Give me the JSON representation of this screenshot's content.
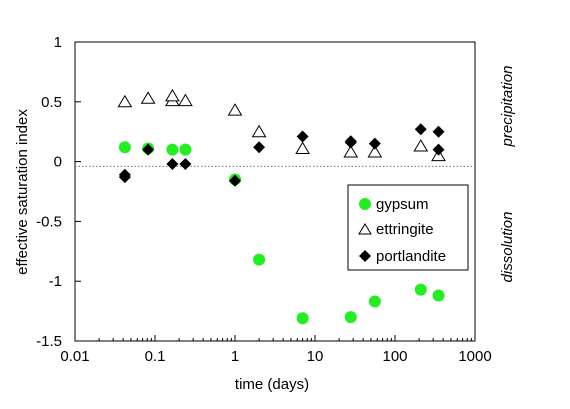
{
  "chart_data": {
    "type": "scatter",
    "title": "",
    "xlabel": "time (days)",
    "ylabel": "effective saturation index",
    "xscale": "log",
    "xlim": [
      0.01,
      1000
    ],
    "ylim": [
      -1.5,
      1
    ],
    "x_ticks": [
      0.01,
      0.1,
      1,
      10,
      100,
      1000
    ],
    "x_tick_labels": [
      "0.01",
      "0.1",
      "1",
      "10",
      "100",
      "1000"
    ],
    "y_ticks": [
      1,
      0.5,
      0,
      -0.5,
      -1,
      -1.5
    ],
    "y_tick_labels": [
      "1",
      "0.5",
      "0",
      "-0.5",
      "-1",
      "-1.5"
    ],
    "reference_line_y": -0.04,
    "side_labels": {
      "upper": "precipitation",
      "lower": "dissolution"
    },
    "legend_position": "right-middle",
    "grid": false,
    "series": [
      {
        "name": "gypsum",
        "marker": "circle",
        "color": "#22ee22",
        "points": [
          [
            0.042,
            0.12
          ],
          [
            0.082,
            0.11
          ],
          [
            0.165,
            0.1
          ],
          [
            0.24,
            0.1
          ],
          [
            1.0,
            -0.15
          ],
          [
            2.0,
            -0.82
          ],
          [
            7.0,
            -1.31
          ],
          [
            28,
            -1.3
          ],
          [
            56,
            -1.17
          ],
          [
            210,
            -1.07
          ],
          [
            350,
            -1.12
          ]
        ]
      },
      {
        "name": "ettringite",
        "marker": "triangle-open",
        "color": "#000000",
        "points": [
          [
            0.042,
            0.5
          ],
          [
            0.082,
            0.53
          ],
          [
            0.165,
            0.51
          ],
          [
            0.165,
            0.55
          ],
          [
            0.24,
            0.51
          ],
          [
            1.0,
            0.43
          ],
          [
            2.0,
            0.25
          ],
          [
            7.0,
            0.11
          ],
          [
            28,
            0.08
          ],
          [
            56,
            0.08
          ],
          [
            210,
            0.13
          ],
          [
            350,
            0.05
          ]
        ]
      },
      {
        "name": "portlandite",
        "marker": "diamond",
        "color": "#000000",
        "points": [
          [
            0.042,
            -0.13
          ],
          [
            0.042,
            -0.11
          ],
          [
            0.082,
            0.1
          ],
          [
            0.165,
            -0.02
          ],
          [
            0.24,
            -0.02
          ],
          [
            1.0,
            -0.16
          ],
          [
            2.0,
            0.12
          ],
          [
            7.0,
            0.21
          ],
          [
            28,
            0.16
          ],
          [
            28,
            0.17
          ],
          [
            56,
            0.15
          ],
          [
            210,
            0.27
          ],
          [
            350,
            0.25
          ],
          [
            350,
            0.1
          ]
        ]
      }
    ]
  }
}
